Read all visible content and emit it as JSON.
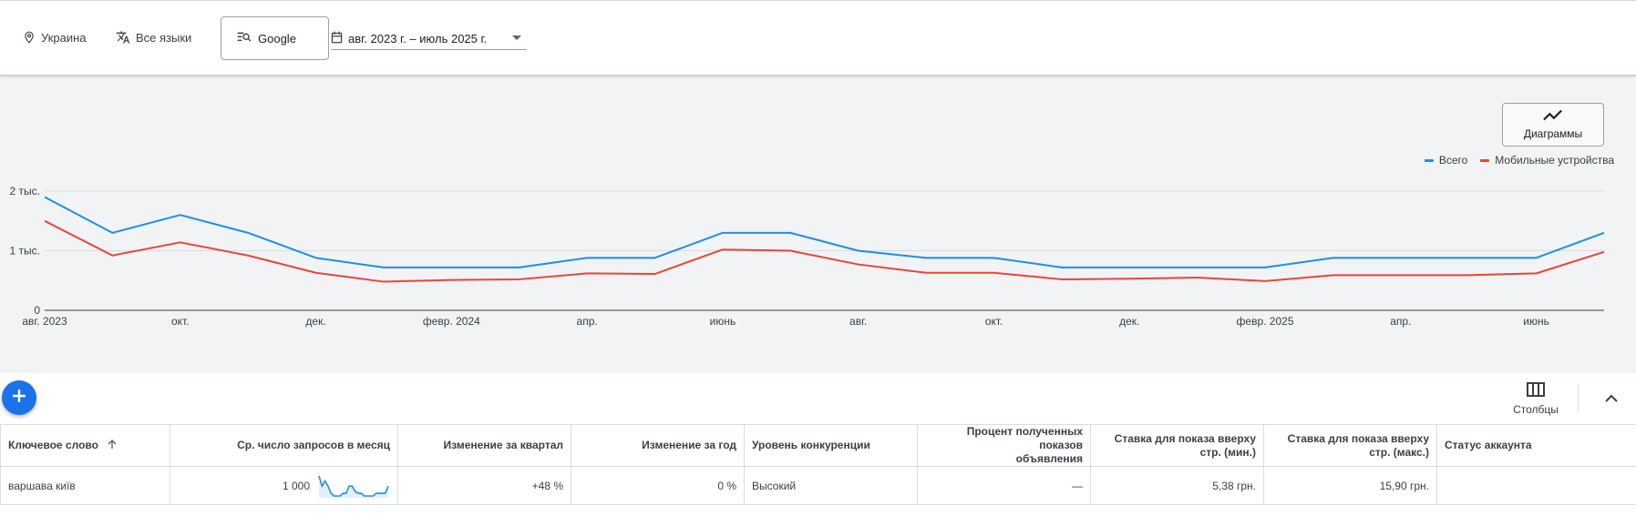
{
  "filters": {
    "location": "Украина",
    "language": "Все языки",
    "engine": "Google",
    "date_range": "авг. 2023 г. – июль 2025 г."
  },
  "chart_toggle_label": "Диаграммы",
  "chart_data": {
    "type": "line",
    "title": "",
    "xlabel": "",
    "ylabel": "",
    "x": [
      "2023-08",
      "2023-09",
      "2023-10",
      "2023-11",
      "2023-12",
      "2024-01",
      "2024-02",
      "2024-03",
      "2024-04",
      "2024-05",
      "2024-06",
      "2024-07",
      "2024-08",
      "2024-09",
      "2024-10",
      "2024-11",
      "2024-12",
      "2025-01",
      "2025-02",
      "2025-03",
      "2025-04",
      "2025-05",
      "2025-06",
      "2025-07"
    ],
    "x_tick_labels": [
      {
        "at": "2023-08",
        "label": "авг. 2023"
      },
      {
        "at": "2023-10",
        "label": "окт."
      },
      {
        "at": "2023-12",
        "label": "дек."
      },
      {
        "at": "2024-02",
        "label": "февр. 2024"
      },
      {
        "at": "2024-04",
        "label": "апр."
      },
      {
        "at": "2024-06",
        "label": "июнь"
      },
      {
        "at": "2024-08",
        "label": "авг."
      },
      {
        "at": "2024-10",
        "label": "окт."
      },
      {
        "at": "2024-12",
        "label": "дек."
      },
      {
        "at": "2025-02",
        "label": "февр. 2025"
      },
      {
        "at": "2025-04",
        "label": "апр."
      },
      {
        "at": "2025-06",
        "label": "июнь"
      }
    ],
    "y_ticks": [
      {
        "value": 0,
        "label": "0"
      },
      {
        "value": 1000,
        "label": "1 тыс."
      },
      {
        "value": 2000,
        "label": "2 тыс."
      }
    ],
    "ylim": [
      0,
      2000
    ],
    "grid": true,
    "legend_position": "top-right",
    "series": [
      {
        "name": "Всего",
        "color": "#1e8fe6",
        "values": [
          1900,
          1300,
          1600,
          1300,
          880,
          720,
          720,
          720,
          880,
          880,
          1300,
          1300,
          1000,
          880,
          880,
          720,
          720,
          720,
          720,
          880,
          880,
          880,
          880,
          1300
        ]
      },
      {
        "name": "Мобильные устройства",
        "color": "#e8453c",
        "values": [
          1500,
          920,
          1140,
          920,
          630,
          480,
          510,
          520,
          620,
          610,
          1020,
          1000,
          770,
          630,
          630,
          520,
          530,
          550,
          490,
          590,
          590,
          590,
          620,
          980
        ]
      }
    ]
  },
  "toolbar": {
    "columns_label": "Столбцы"
  },
  "table": {
    "headers": {
      "keyword": "Ключевое слово",
      "avg": "Ср. число запросов в месяц",
      "qoq": "Изменение за квартал",
      "yoy": "Изменение за год",
      "competition": "Уровень конкуренции",
      "share_line1": "Процент полученных показов",
      "share_line2": "объявления",
      "bid_low_line1": "Ставка для показа вверху",
      "bid_low_line2": "стр. (мин.)",
      "bid_high_line1": "Ставка для показа вверху",
      "bid_high_line2": "стр. (макс.)",
      "status": "Статус аккаунта"
    },
    "rows": [
      {
        "keyword": "варшава київ",
        "avg": "1 000",
        "spark_values": [
          1900,
          1300,
          1600,
          1300,
          880,
          720,
          720,
          720,
          880,
          880,
          1300,
          1300,
          1000,
          880,
          880,
          720,
          720,
          720,
          720,
          880,
          880,
          880,
          880,
          1300
        ],
        "qoq": "+48 %",
        "yoy": "0 %",
        "competition": "Высокий",
        "share": "—",
        "bid_low": "5,38 грн.",
        "bid_high": "15,90 грн.",
        "status": ""
      }
    ]
  },
  "colors": {
    "accent": "#1a73e8",
    "series_total": "#1e8fe6",
    "series_mobile": "#e8453c",
    "chart_bg": "#f1f3f4"
  },
  "icons": {
    "location": "location-pin-icon",
    "language": "translate-icon",
    "engine": "search-network-icon",
    "date": "calendar-icon",
    "chart_toggle": "trending-line-icon",
    "add": "plus-icon",
    "columns": "columns-icon",
    "collapse": "chevron-up-icon",
    "sort": "arrow-up-icon"
  }
}
